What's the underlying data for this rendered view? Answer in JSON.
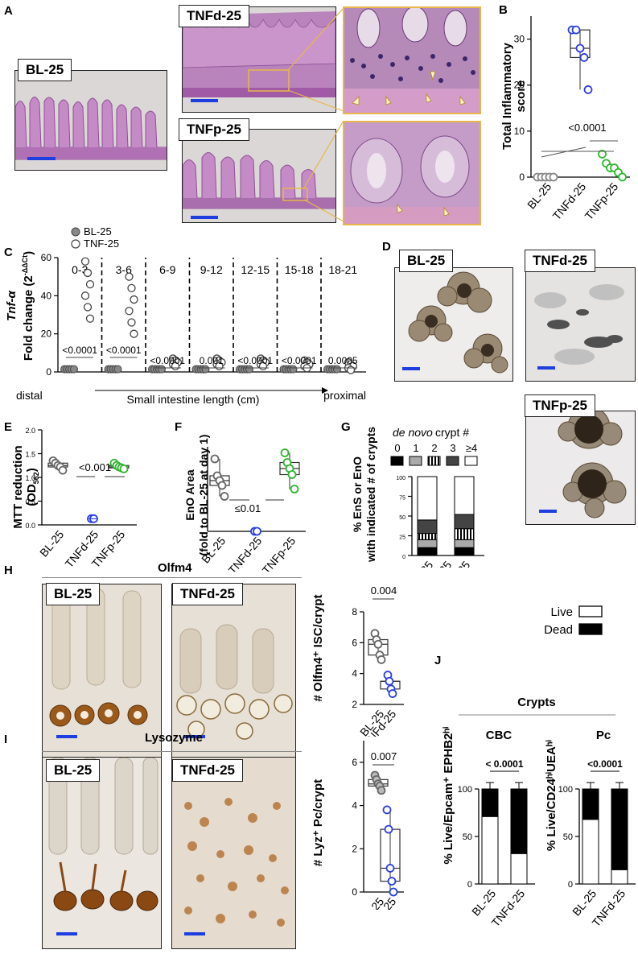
{
  "panel_letters": [
    "A",
    "B",
    "C",
    "D",
    "E",
    "F",
    "G",
    "H",
    "I",
    "J"
  ],
  "panelA": {
    "tags": {
      "bl": "BL-25",
      "tnfd": "TNFd-25",
      "tnfp": "TNFp-25"
    }
  },
  "panelB": {
    "ylabel_line1": "Total Inflammatory",
    "ylabel_line2": "score",
    "yticks": [
      "0",
      "10",
      "20",
      "30"
    ],
    "xticks": [
      "BL-25",
      "TNFd-25",
      "TNFp-25"
    ],
    "pvalue": "<0.0001"
  },
  "panelC": {
    "legend": {
      "bl": "BL-25",
      "tnf": "TNF-25"
    },
    "ylabel_italic": "Tnf-α",
    "ylabel_line2": "Fold change (2",
    "ylabel_sup": "-ΔΔCt",
    "ylabel_close": ")",
    "yticks": [
      "0",
      "20",
      "40",
      "60"
    ],
    "segments": [
      "0-3",
      "3-6",
      "6-9",
      "9-12",
      "12-15",
      "15-18",
      "18-21"
    ],
    "pvalues": [
      "<0.0001",
      "<0.0001",
      "<0.0001",
      "0.001",
      "<0.0001",
      "<0.0001",
      "0.0005"
    ],
    "xlabel": "Small intestine length (cm)",
    "left_end": "distal",
    "right_end": "proximal"
  },
  "panelD": {
    "tags": {
      "bl": "BL-25",
      "tnfd": "TNFd-25",
      "tnfp": "TNFp-25"
    }
  },
  "panelE": {
    "ylabel_line1": "MTT reduction",
    "ylabel_line2": "(OD",
    "ylabel_sub": "562",
    "ylabel_close": ")",
    "yticks": [
      "0.0",
      "0.5",
      "1.0",
      "1.5",
      "2.0"
    ],
    "xticks": [
      "BL-25",
      "TNFd-25",
      "TNFp-25"
    ],
    "pvalue": "<0.001"
  },
  "panelF": {
    "ylabel_line1": "EnO Area",
    "ylabel_line2": "(fold to BL-25 at day 1)",
    "xticks": [
      "BL-25",
      "TNFd-25",
      "TNFp-25"
    ],
    "pvalue": "≤0.01"
  },
  "panelG": {
    "ylabel_line1": "% EnS or EnO",
    "ylabel_line2": "with indicated # of crypts",
    "header_italic": "de novo",
    "header_rest": " crypt #",
    "legend_labels": [
      "0",
      "1",
      "2",
      "3",
      "≥4"
    ],
    "yticks": [
      "0",
      "25",
      "50",
      "75",
      "100"
    ],
    "xticks": [
      "BL-25",
      "TNFd-25",
      "TNFp-25"
    ]
  },
  "panelH": {
    "title": "Olfm4",
    "tags": {
      "bl": "BL-25",
      "tnfd": "TNFd-25"
    },
    "ylabel": "# Olfm4⁺ ISC/crypt",
    "yticks": [
      "2",
      "4",
      "6",
      "8"
    ],
    "xticks": [
      "BL-25",
      "TNFd-25"
    ],
    "pvalue": "0.004"
  },
  "panelI": {
    "title": "Lysozyme",
    "tags": {
      "bl": "BL-25",
      "tnfd": "TNFd-25"
    },
    "ylabel": "# Lyz⁺ Pc/crypt",
    "yticks": [
      "0",
      "2",
      "4",
      "6"
    ],
    "xticks": [
      "BL-25",
      "TNFd-25"
    ],
    "pvalue": "0.007"
  },
  "panelJ": {
    "legend": {
      "live": "Live",
      "dead": "Dead"
    },
    "title": "Crypts",
    "cbc": {
      "title": "CBC",
      "ylabel": "% Live/Epcam⁺ EPHB2ʰⁱ",
      "yticks": [
        "0",
        "50",
        "100"
      ],
      "xticks": [
        "BL-25",
        "TNFd-25"
      ],
      "pvalue": "< 0.0001"
    },
    "pc": {
      "title": "Pc",
      "ylabel": "% Live/CD24ʰⁱUEAʰⁱ",
      "yticks": [
        "0",
        "50",
        "100"
      ],
      "xticks": [
        "BL-25",
        "TNFd-25"
      ],
      "pvalue": "<0.0001"
    }
  },
  "colors": {
    "blue": "#2b3fe0",
    "green": "#2fb62f",
    "grey": "#888888",
    "he_purple": "#b06fb4",
    "ihc_brown": "#8a4a12"
  },
  "chart_data": [
    {
      "id": "B",
      "type": "scatter",
      "ylim": [
        0,
        35
      ],
      "series": [
        {
          "name": "BL-25",
          "values": [
            0,
            0,
            0,
            0,
            0
          ]
        },
        {
          "name": "TNFd-25",
          "values": [
            32,
            32,
            28,
            26,
            19
          ]
        },
        {
          "name": "TNFp-25",
          "values": [
            5,
            3,
            2,
            2,
            1,
            0
          ]
        }
      ]
    },
    {
      "id": "C",
      "type": "scatter",
      "ylim": [
        0,
        60
      ],
      "categories": [
        "0-3",
        "3-6",
        "6-9",
        "9-12",
        "12-15",
        "15-18",
        "18-21"
      ],
      "series": [
        {
          "name": "BL-25",
          "values": [
            1,
            1,
            1,
            1,
            1,
            1,
            1
          ]
        },
        {
          "name": "TNF-25",
          "values": [
            44,
            36,
            5,
            5,
            5,
            4,
            3
          ]
        }
      ]
    },
    {
      "id": "E",
      "type": "scatter",
      "ylim": [
        0,
        2.0
      ],
      "series": [
        {
          "name": "BL-25",
          "values": [
            1.35,
            1.3,
            1.25,
            1.22,
            1.15
          ]
        },
        {
          "name": "TNFd-25",
          "values": [
            0.13,
            0.13
          ]
        },
        {
          "name": "TNFp-25",
          "values": [
            1.3,
            1.25,
            1.22,
            1.2,
            1.18
          ]
        }
      ]
    },
    {
      "id": "F",
      "type": "scatter",
      "series": [
        {
          "name": "BL-25",
          "values": [
            6,
            4.6,
            4.2,
            3.8,
            2.9
          ]
        },
        {
          "name": "TNFd-25",
          "values": [
            0,
            0
          ]
        },
        {
          "name": "TNFp-25",
          "values": [
            6.5,
            5.7,
            5.2,
            4.7,
            3.5
          ]
        }
      ]
    },
    {
      "id": "G",
      "type": "bar",
      "stacked": true,
      "ylim": [
        0,
        100
      ],
      "categories": [
        "BL-25",
        "TNFd-25",
        "TNFp-25"
      ],
      "series": [
        {
          "name": "0",
          "values": [
            10,
            0,
            10
          ]
        },
        {
          "name": "1",
          "values": [
            10,
            0,
            10
          ]
        },
        {
          "name": "2",
          "values": [
            8,
            0,
            14
          ]
        },
        {
          "name": "3",
          "values": [
            17,
            0,
            18
          ]
        },
        {
          "name": "≥4",
          "values": [
            55,
            0,
            48
          ]
        }
      ]
    },
    {
      "id": "H",
      "type": "scatter",
      "ylim": [
        2,
        8
      ],
      "series": [
        {
          "name": "BL-25",
          "values": [
            6.6,
            6.2,
            5.9,
            5.2,
            4.9
          ]
        },
        {
          "name": "TNFd-25",
          "values": [
            3.9,
            3.5,
            3.0,
            2.7
          ]
        }
      ]
    },
    {
      "id": "I",
      "type": "scatter",
      "ylim": [
        0,
        7
      ],
      "series": [
        {
          "name": "BL-25",
          "values": [
            5.4,
            5.2,
            5.0,
            4.9,
            4.7
          ]
        },
        {
          "name": "TNFd-25",
          "values": [
            3.8,
            2.9,
            1.1,
            0.5,
            0
          ]
        }
      ]
    },
    {
      "id": "J-CBC",
      "type": "bar",
      "stacked": true,
      "ylim": [
        0,
        100
      ],
      "categories": [
        "BL-25",
        "TNFd-25"
      ],
      "series": [
        {
          "name": "Live",
          "values": [
            71,
            32
          ]
        },
        {
          "name": "Dead",
          "values": [
            29,
            68
          ]
        }
      ]
    },
    {
      "id": "J-Pc",
      "type": "bar",
      "stacked": true,
      "ylim": [
        0,
        100
      ],
      "categories": [
        "BL-25",
        "TNFd-25"
      ],
      "series": [
        {
          "name": "Live",
          "values": [
            68,
            15
          ]
        },
        {
          "name": "Dead",
          "values": [
            32,
            85
          ]
        }
      ]
    }
  ]
}
